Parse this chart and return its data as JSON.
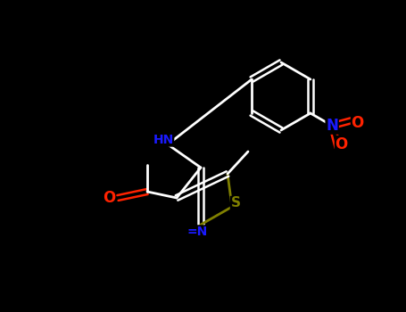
{
  "background_color": "#000000",
  "bond_color": "#ffffff",
  "atom_colors": {
    "O": "#ff2200",
    "N": "#1a1aff",
    "S": "#808000",
    "C": "#ffffff"
  },
  "figsize": [
    4.55,
    3.5
  ],
  "dpi": 100
}
